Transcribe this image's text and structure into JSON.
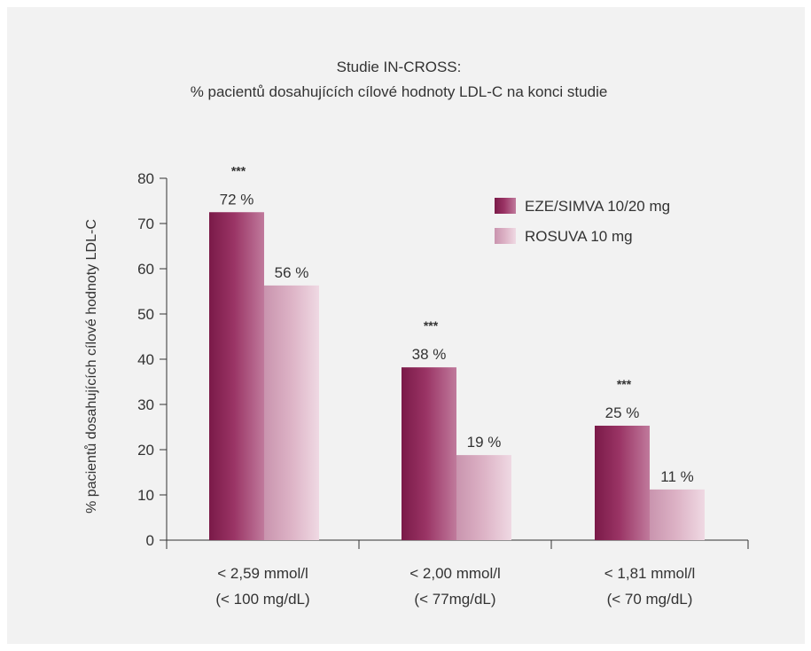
{
  "chart_data": {
    "type": "bar",
    "title_lines": [
      "Studie IN-CROSS:",
      "% pacientů dosahujících cílové hodnoty  LDL-C na konci studie"
    ],
    "ylabel": "% pacientů dosahujících cílové hodnoty LDL-C",
    "xlabel": "",
    "ylim": [
      0,
      80
    ],
    "yticks": [
      0,
      10,
      20,
      30,
      40,
      50,
      60,
      70,
      80
    ],
    "categories": [
      {
        "line1": "< 2,59 mmol/l",
        "line2": "(< 100 mg/dL)"
      },
      {
        "line1": "< 2,00 mmol/l",
        "line2": "(< 77mg/dL)"
      },
      {
        "line1": "< 1,81 mmol/l",
        "line2": "(< 70 mg/dL)"
      }
    ],
    "series": [
      {
        "name": "EZE/SIMVA 10/20 mg",
        "values": [
          72.5,
          38.2,
          25.3
        ],
        "labels": [
          "72 %",
          "38 %",
          "25 %"
        ],
        "color": "#8e2556"
      },
      {
        "name": "ROSUVA 10 mg",
        "values": [
          56.3,
          18.8,
          11.2
        ],
        "labels": [
          "56 %",
          "19 %",
          "11 %"
        ],
        "color": "#d9a8bf"
      }
    ],
    "significance": [
      "***",
      "***",
      "***"
    ],
    "legend_position": "top-right",
    "grid": false
  },
  "colors": {
    "background": "#f2f2f2",
    "axis": "#333333",
    "series1_dark": "#7a1a48",
    "series1_light": "#b26088",
    "series2_dark": "#c994ae",
    "series2_light": "#ecd3df"
  }
}
